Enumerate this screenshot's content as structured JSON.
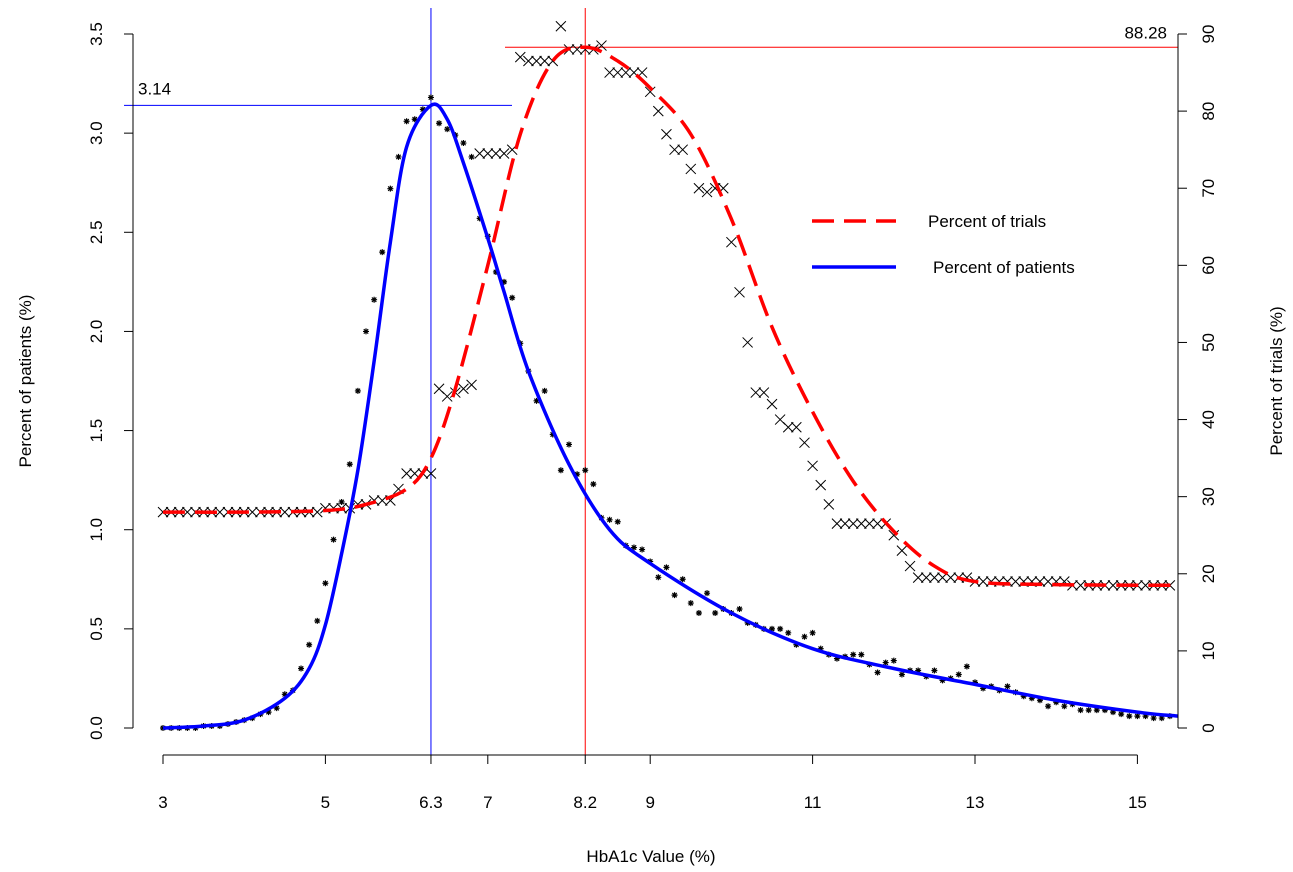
{
  "chart_data": {
    "type": "line",
    "title": "",
    "xlabel": "HbA1c Value (%)",
    "ylabel_left": "Percent of patients (%)",
    "ylabel_right": "Percent of trials (%)",
    "xlim": [
      3,
      15.5
    ],
    "ylim_left": [
      0,
      3.5
    ],
    "ylim_right": [
      0,
      90
    ],
    "x_ticks": [
      3,
      5,
      6.3,
      7,
      8.2,
      9,
      11,
      13,
      15
    ],
    "x_tick_labels": [
      "3",
      "5",
      "6.3",
      "7",
      "8.2",
      "9",
      "11",
      "13",
      "15"
    ],
    "y_left_ticks": [
      0,
      0.5,
      1,
      1.5,
      2,
      2.5,
      3,
      3.5
    ],
    "y_left_tick_labels": [
      "0.0",
      "0.5",
      "1.0",
      "1.5",
      "2.0",
      "2.5",
      "3.0",
      "3.5"
    ],
    "y_right_ticks": [
      0,
      10,
      20,
      30,
      40,
      50,
      60,
      70,
      80,
      90
    ],
    "y_right_tick_labels": [
      "0",
      "10",
      "20",
      "30",
      "40",
      "50",
      "60",
      "70",
      "80",
      "90"
    ],
    "grid": false,
    "legend_position": "top-right",
    "colors": {
      "trials": "#ff0000",
      "patients": "#0000ff",
      "points": "#000000"
    },
    "series": [
      {
        "name": "Percent of trials",
        "axis": "right",
        "style": "dashed",
        "color": "#ff0000",
        "x": [
          3,
          4,
          5,
          5.5,
          6,
          6.3,
          6.6,
          7,
          7.4,
          7.8,
          8.2,
          8.6,
          9,
          9.5,
          10,
          10.5,
          11,
          11.5,
          12,
          12.5,
          13,
          14,
          15.5
        ],
        "y": [
          28,
          28,
          28.2,
          29,
          31,
          35,
          44,
          60,
          77,
          86.5,
          88.28,
          86.5,
          83,
          77,
          66,
          52,
          41,
          32,
          25.5,
          21,
          19,
          18.6,
          18.5
        ]
      },
      {
        "name": "Percent of patients",
        "axis": "left",
        "style": "solid",
        "color": "#0000ff",
        "x": [
          3,
          3.5,
          4,
          4.5,
          4.8,
          5,
          5.2,
          5.4,
          5.6,
          5.8,
          6,
          6.3,
          6.5,
          6.7,
          7,
          7.2,
          7.5,
          8,
          8.5,
          9,
          10,
          11,
          12,
          13,
          14,
          15,
          15.5
        ],
        "y": [
          0,
          0.01,
          0.04,
          0.15,
          0.3,
          0.52,
          0.88,
          1.3,
          1.85,
          2.45,
          2.93,
          3.14,
          3.07,
          2.85,
          2.47,
          2.2,
          1.8,
          1.33,
          1.0,
          0.83,
          0.58,
          0.4,
          0.3,
          0.22,
          0.14,
          0.08,
          0.06
        ]
      }
    ],
    "reference_lines": [
      {
        "series": "Percent of patients",
        "x": 6.3,
        "y": 3.14,
        "label": "3.14",
        "color": "#0000ff"
      },
      {
        "series": "Percent of trials",
        "x": 8.2,
        "y": 88.28,
        "label": "88.28",
        "color": "#ff0000"
      }
    ],
    "scatter_series": [
      {
        "series": "Percent of trials",
        "marker": "x",
        "x": [
          3.0,
          3.1,
          3.2,
          3.3,
          3.4,
          3.5,
          3.6,
          3.7,
          3.8,
          3.9,
          4.0,
          4.1,
          4.2,
          4.3,
          4.4,
          4.5,
          4.6,
          4.7,
          4.8,
          4.9,
          5.0,
          5.1,
          5.2,
          5.3,
          5.4,
          5.5,
          5.6,
          5.7,
          5.8,
          5.9,
          6.0,
          6.1,
          6.2,
          6.3,
          6.4,
          6.5,
          6.6,
          6.7,
          6.8,
          6.9,
          7.0,
          7.1,
          7.2,
          7.3,
          7.4,
          7.5,
          7.6,
          7.7,
          7.8,
          7.9,
          8.0,
          8.1,
          8.2,
          8.3,
          8.4,
          8.5,
          8.6,
          8.7,
          8.8,
          8.9,
          9.0,
          9.1,
          9.2,
          9.3,
          9.4,
          9.5,
          9.6,
          9.7,
          9.8,
          9.9,
          10.0,
          10.1,
          10.2,
          10.3,
          10.4,
          10.5,
          10.6,
          10.7,
          10.8,
          10.9,
          11.0,
          11.1,
          11.2,
          11.3,
          11.4,
          11.5,
          11.6,
          11.7,
          11.8,
          11.9,
          12.0,
          12.1,
          12.2,
          12.3,
          12.4,
          12.5,
          12.6,
          12.7,
          12.8,
          12.9,
          13.0,
          13.1,
          13.2,
          13.3,
          13.4,
          13.5,
          13.6,
          13.7,
          13.8,
          13.9,
          14.0,
          14.1,
          14.2,
          14.3,
          14.4,
          14.5,
          14.6,
          14.7,
          14.8,
          14.9,
          15.0,
          15.1,
          15.2,
          15.3,
          15.4
        ],
        "y": [
          28,
          28,
          28,
          28,
          28,
          28,
          28,
          28,
          28,
          28,
          28,
          28,
          28,
          28,
          28,
          28,
          28,
          28,
          28,
          28,
          28.5,
          28.5,
          28.5,
          28.5,
          29,
          29,
          29.5,
          29.5,
          29.5,
          31,
          33,
          33,
          33,
          33,
          44,
          43,
          43.5,
          44,
          44.5,
          74.5,
          74.5,
          74.5,
          74.5,
          75,
          87,
          86.5,
          86.5,
          86.5,
          86.5,
          91,
          88,
          88,
          88,
          88,
          88.5,
          85,
          85,
          85,
          85,
          85,
          82.5,
          80,
          77,
          75,
          75,
          72.5,
          70,
          69.5,
          70,
          70,
          63,
          56.5,
          50,
          43.5,
          43.5,
          42,
          40,
          39,
          39,
          37,
          34,
          31.5,
          29,
          26.5,
          26.5,
          26.5,
          26.5,
          26.5,
          26.5,
          26.5,
          25,
          23,
          21,
          19.5,
          19.5,
          19.5,
          19.5,
          19.5,
          19.5,
          19.5,
          19,
          19,
          19,
          19,
          19,
          19,
          19,
          19,
          19,
          19,
          19,
          19,
          18.5,
          18.5,
          18.5,
          18.5,
          18.5,
          18.5,
          18.5,
          18.5,
          18.5,
          18.5,
          18.5,
          18.5,
          18.5
        ]
      },
      {
        "series": "Percent of patients",
        "marker": "*",
        "x": [
          3.0,
          3.1,
          3.2,
          3.3,
          3.4,
          3.5,
          3.6,
          3.7,
          3.8,
          3.9,
          4.0,
          4.1,
          4.2,
          4.3,
          4.4,
          4.5,
          4.6,
          4.7,
          4.8,
          4.9,
          5.0,
          5.1,
          5.2,
          5.3,
          5.4,
          5.5,
          5.6,
          5.7,
          5.8,
          5.9,
          6.0,
          6.1,
          6.2,
          6.3,
          6.4,
          6.5,
          6.6,
          6.7,
          6.8,
          6.9,
          7.0,
          7.1,
          7.2,
          7.3,
          7.4,
          7.5,
          7.6,
          7.7,
          7.8,
          7.9,
          8.0,
          8.1,
          8.2,
          8.3,
          8.4,
          8.5,
          8.6,
          8.7,
          8.8,
          8.9,
          9.0,
          9.1,
          9.2,
          9.3,
          9.4,
          9.5,
          9.6,
          9.7,
          9.8,
          9.9,
          10.0,
          10.1,
          10.2,
          10.3,
          10.4,
          10.5,
          10.6,
          10.7,
          10.8,
          10.9,
          11.0,
          11.1,
          11.2,
          11.3,
          11.4,
          11.5,
          11.6,
          11.7,
          11.8,
          11.9,
          12.0,
          12.1,
          12.2,
          12.3,
          12.4,
          12.5,
          12.6,
          12.7,
          12.8,
          12.9,
          13.0,
          13.1,
          13.2,
          13.3,
          13.4,
          13.5,
          13.6,
          13.7,
          13.8,
          13.9,
          14.0,
          14.1,
          14.2,
          14.3,
          14.4,
          14.5,
          14.6,
          14.7,
          14.8,
          14.9,
          15.0,
          15.1,
          15.2,
          15.3,
          15.4
        ],
        "y": [
          0,
          0,
          0,
          0,
          0,
          0.01,
          0.01,
          0.01,
          0.02,
          0.03,
          0.04,
          0.05,
          0.07,
          0.08,
          0.1,
          0.17,
          0.19,
          0.3,
          0.42,
          0.54,
          0.73,
          0.95,
          1.14,
          1.33,
          1.7,
          2.0,
          2.16,
          2.4,
          2.72,
          2.88,
          3.06,
          3.07,
          3.12,
          3.18,
          3.05,
          3.02,
          2.99,
          2.95,
          2.88,
          2.57,
          2.48,
          2.3,
          2.25,
          2.17,
          1.94,
          1.8,
          1.65,
          1.7,
          1.48,
          1.3,
          1.43,
          1.28,
          1.3,
          1.23,
          1.06,
          1.05,
          1.04,
          0.92,
          0.91,
          0.9,
          0.84,
          0.76,
          0.81,
          0.67,
          0.75,
          0.63,
          0.58,
          0.68,
          0.58,
          0.6,
          0.58,
          0.6,
          0.53,
          0.52,
          0.5,
          0.5,
          0.5,
          0.48,
          0.42,
          0.46,
          0.48,
          0.4,
          0.37,
          0.35,
          0.36,
          0.37,
          0.37,
          0.32,
          0.28,
          0.33,
          0.34,
          0.27,
          0.29,
          0.29,
          0.26,
          0.29,
          0.24,
          0.25,
          0.27,
          0.31,
          0.23,
          0.2,
          0.21,
          0.19,
          0.21,
          0.18,
          0.16,
          0.15,
          0.14,
          0.11,
          0.13,
          0.11,
          0.12,
          0.09,
          0.09,
          0.09,
          0.09,
          0.08,
          0.07,
          0.06,
          0.06,
          0.06,
          0.05,
          0.05,
          0.06
        ]
      }
    ]
  }
}
